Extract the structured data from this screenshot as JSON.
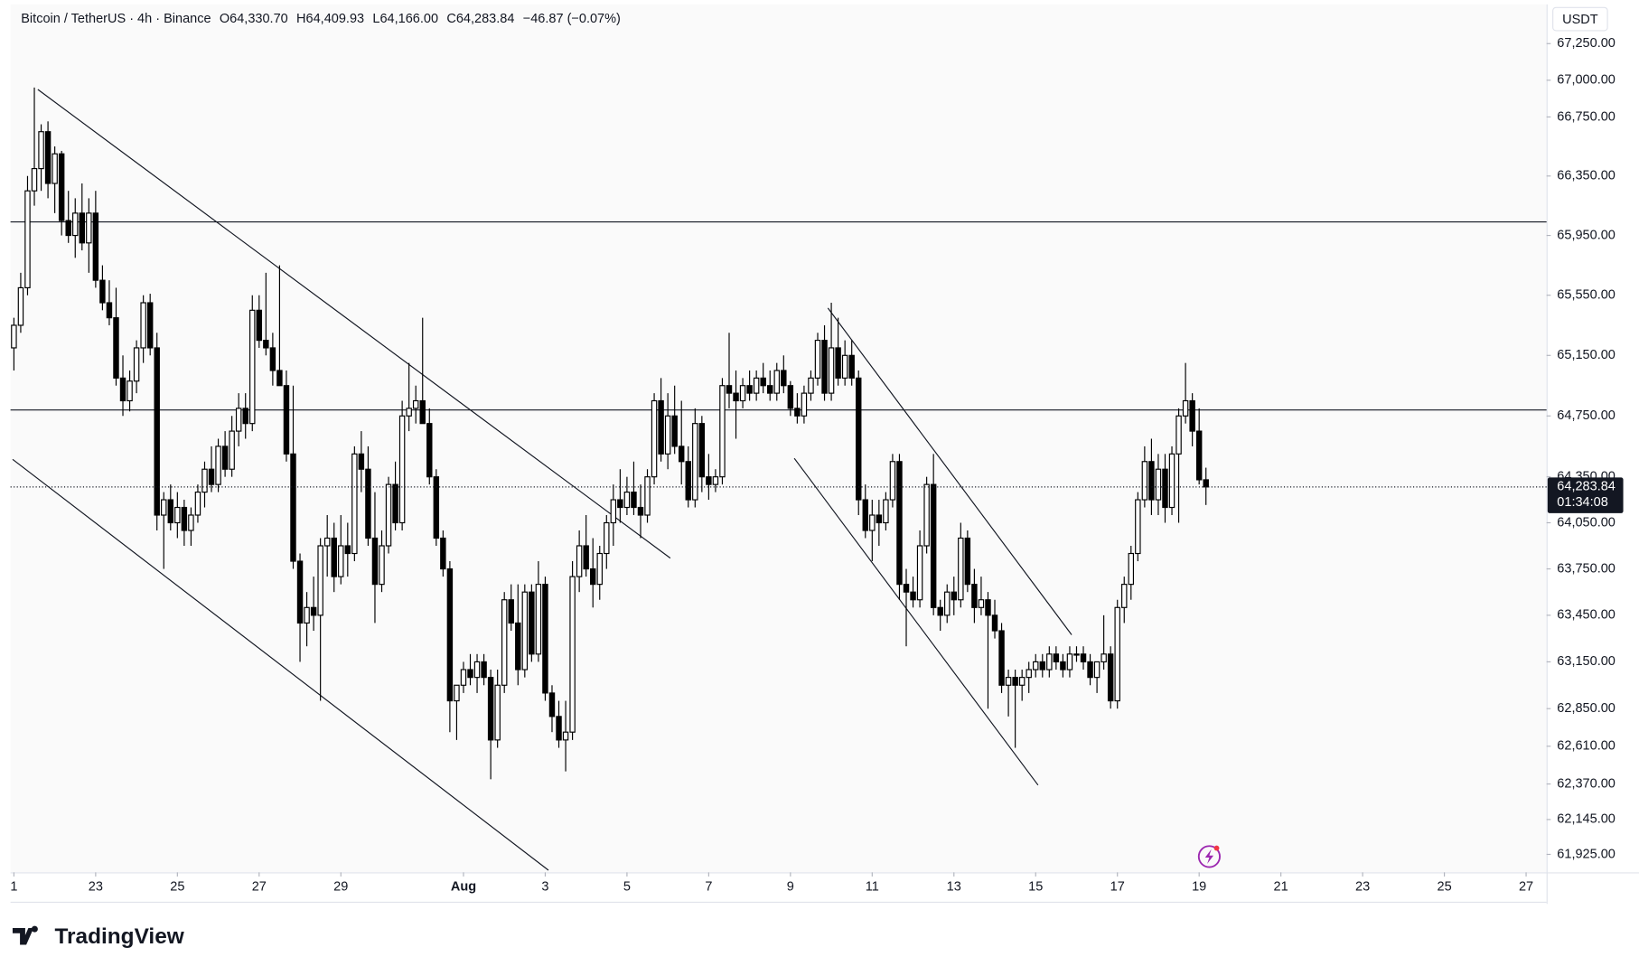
{
  "chart_data": {
    "type": "candlestick",
    "title": "Bitcoin / TetherUS · 4h · Binance",
    "ohlc_labels": [
      "O64,330.70",
      "H64,409.93",
      "L64,166.00",
      "C64,283.84",
      "−46.87 (−0.07%)"
    ],
    "currency": "USDT",
    "last_price_label": "64,283.84",
    "countdown": "01:34:08",
    "branding": "TradingView",
    "up_color": "#ffffff",
    "down_color": "#000000",
    "outline_color": "#000000",
    "ylog": true,
    "xlim": [
      -0.5,
      225
    ],
    "ylim": [
      61812,
      67519
    ],
    "xticks": [
      {
        "value": 0,
        "label": "1"
      },
      {
        "value": 12,
        "label": "23"
      },
      {
        "value": 24,
        "label": "25"
      },
      {
        "value": 36,
        "label": "27"
      },
      {
        "value": 48,
        "label": "29"
      },
      {
        "value": 66,
        "label": "Aug"
      },
      {
        "value": 78,
        "label": "3"
      },
      {
        "value": 90,
        "label": "5"
      },
      {
        "value": 102,
        "label": "7"
      },
      {
        "value": 114,
        "label": "9"
      },
      {
        "value": 126,
        "label": "11"
      },
      {
        "value": 138,
        "label": "13"
      },
      {
        "value": 150,
        "label": "15"
      },
      {
        "value": 162,
        "label": "17"
      },
      {
        "value": 174,
        "label": "19"
      },
      {
        "value": 186,
        "label": "21"
      },
      {
        "value": 198,
        "label": "23"
      },
      {
        "value": 210,
        "label": "25"
      },
      {
        "value": 222,
        "label": "27"
      }
    ],
    "yticks": [
      {
        "value": 67250,
        "label": "67,250.00"
      },
      {
        "value": 67000,
        "label": "67,000.00"
      },
      {
        "value": 66750,
        "label": "66,750.00"
      },
      {
        "value": 66350,
        "label": "66,350.00"
      },
      {
        "value": 65950,
        "label": "65,950.00"
      },
      {
        "value": 65550,
        "label": "65,550.00"
      },
      {
        "value": 65150,
        "label": "65,150.00"
      },
      {
        "value": 64750,
        "label": "64,750.00"
      },
      {
        "value": 64350,
        "label": "64,350.00"
      },
      {
        "value": 64050,
        "label": "64,050.00"
      },
      {
        "value": 63750,
        "label": "63,750.00"
      },
      {
        "value": 63450,
        "label": "63,450.00"
      },
      {
        "value": 63150,
        "label": "63,150.00"
      },
      {
        "value": 62850,
        "label": "62,850.00"
      },
      {
        "value": 62610,
        "label": "62,610.00"
      },
      {
        "value": 62370,
        "label": "62,370.00"
      },
      {
        "value": 62145,
        "label": "62,145.00"
      },
      {
        "value": 61925,
        "label": "61,925.00"
      }
    ],
    "open": [
      65200,
      65350,
      65600,
      66250,
      66400,
      66650,
      66300,
      66500,
      66050,
      65950,
      66100,
      65900,
      66100,
      65650,
      65500,
      65400,
      65000,
      64850,
      64980,
      65200,
      65500,
      65200,
      64100,
      64200,
      64050,
      64150,
      64000,
      64100,
      64250,
      64400,
      64300,
      64550,
      64400,
      64650,
      64800,
      64700,
      65450,
      65250,
      65200,
      65050,
      64950,
      64500,
      63800,
      63400,
      63500,
      63450,
      63900,
      63950,
      63700,
      63900,
      63850,
      64500,
      64400,
      63950,
      63650,
      63900,
      64300,
      64050,
      64750,
      64800,
      64850,
      64700,
      64350,
      63950,
      63750,
      62900,
      63000,
      63100,
      63050,
      63150,
      63050,
      62650,
      63000,
      63550,
      63400,
      63100,
      63600,
      63200,
      63650,
      62950,
      62800,
      62650,
      62700,
      63700,
      63900,
      63750,
      63650,
      63850,
      64050,
      64200,
      64150,
      64250,
      64150,
      64100,
      64350,
      64850,
      64500,
      64750,
      64550,
      64450,
      64200,
      64700,
      64350,
      64300,
      64350,
      64950,
      64900,
      64850,
      64950,
      64900,
      65000,
      64950,
      64900,
      65050,
      64950,
      64800,
      64750,
      64900,
      65000,
      65250,
      64900,
      65200,
      65000,
      65150,
      65000,
      64200,
      64000,
      64100,
      64050,
      64200,
      64450,
      63650,
      63600,
      63550,
      63900,
      64300,
      63500,
      63450,
      63600,
      63550,
      63950,
      63650,
      63500,
      63550,
      63450,
      63350,
      63000,
      63050,
      63000,
      63050,
      63100,
      63150,
      63100,
      63200,
      63150,
      63100,
      63200,
      63200,
      63150,
      63050,
      63150,
      63200,
      62900,
      63500,
      63650,
      63850,
      64200,
      64450,
      64200,
      64400,
      64150,
      64500,
      64750,
      64850,
      64650,
      64330.7
    ],
    "high": [
      65400,
      65700,
      66350,
      66950,
      66700,
      66720,
      66550,
      66520,
      66250,
      66200,
      66300,
      66200,
      66250,
      65750,
      65650,
      65600,
      65150,
      65050,
      65250,
      65550,
      65560,
      65300,
      64250,
      64300,
      64250,
      64200,
      64150,
      64300,
      64450,
      64550,
      64600,
      64650,
      64750,
      64900,
      64900,
      65550,
      65550,
      65700,
      65300,
      65750,
      65050,
      64950,
      63850,
      63600,
      63700,
      63950,
      64100,
      64050,
      64100,
      64050,
      64550,
      64650,
      64550,
      64250,
      64000,
      64350,
      64450,
      64850,
      65100,
      64950,
      65400,
      64800,
      64400,
      64000,
      63800,
      63000,
      63150,
      63200,
      63200,
      63200,
      63100,
      63100,
      63600,
      63650,
      63650,
      63650,
      63650,
      63800,
      63700,
      63000,
      62900,
      62900,
      63800,
      64000,
      64100,
      63950,
      63900,
      64100,
      64300,
      64400,
      64350,
      64450,
      64300,
      64400,
      64900,
      65000,
      64900,
      64950,
      64850,
      64550,
      64800,
      64750,
      64500,
      64400,
      65000,
      65300,
      65050,
      65000,
      65050,
      65050,
      65100,
      65050,
      65100,
      65150,
      64980,
      64900,
      64950,
      65050,
      65300,
      65350,
      65500,
      65400,
      65250,
      65250,
      65050,
      64300,
      64200,
      64200,
      64250,
      64500,
      64500,
      63750,
      63700,
      64000,
      64350,
      64500,
      63550,
      63650,
      63700,
      64050,
      64000,
      63750,
      63700,
      63600,
      63550,
      63400,
      63100,
      63100,
      63100,
      63150,
      63200,
      63200,
      63250,
      63250,
      63200,
      63250,
      63250,
      63250,
      63200,
      63150,
      63450,
      63250,
      63550,
      63700,
      63900,
      64250,
      64550,
      64600,
      64500,
      64500,
      64550,
      64800,
      65100,
      64900,
      64800,
      64409.93
    ],
    "low": [
      65050,
      65300,
      65550,
      66150,
      66250,
      66200,
      66100,
      65950,
      65900,
      65800,
      65850,
      65700,
      65600,
      65450,
      65350,
      64950,
      64750,
      64780,
      64900,
      65100,
      65150,
      64000,
      63750,
      64000,
      63950,
      63900,
      63900,
      64050,
      64150,
      64250,
      64250,
      64350,
      64350,
      64550,
      64600,
      64650,
      65200,
      65150,
      64950,
      64950,
      64450,
      63750,
      63150,
      63250,
      63350,
      62900,
      63700,
      63600,
      63650,
      63700,
      63800,
      64250,
      63900,
      63400,
      63600,
      63850,
      64000,
      64000,
      64650,
      64700,
      64700,
      64300,
      63900,
      63700,
      62700,
      62650,
      62950,
      63000,
      62950,
      63000,
      62400,
      62600,
      62950,
      63350,
      63000,
      63050,
      63150,
      63150,
      62900,
      62700,
      62600,
      62450,
      62650,
      63600,
      63700,
      63500,
      63550,
      63750,
      63900,
      64050,
      64100,
      64100,
      63950,
      64050,
      64300,
      64450,
      64400,
      64500,
      64300,
      64150,
      64150,
      64250,
      64200,
      64250,
      64300,
      64800,
      64600,
      64800,
      64850,
      64850,
      64900,
      64850,
      64850,
      64900,
      64750,
      64700,
      64700,
      64850,
      64950,
      64850,
      64850,
      64950,
      64950,
      64950,
      64100,
      63950,
      63800,
      63900,
      64000,
      64150,
      63550,
      63250,
      63500,
      63500,
      63850,
      63450,
      63350,
      63400,
      63450,
      63500,
      63600,
      63400,
      63450,
      62850,
      63300,
      62950,
      62800,
      62600,
      62900,
      62950,
      63050,
      63050,
      63050,
      63100,
      63050,
      63050,
      63150,
      63100,
      63000,
      62950,
      63100,
      62850,
      62850,
      63400,
      63550,
      63800,
      64150,
      64100,
      64100,
      64050,
      64100,
      64050,
      64700,
      64550,
      64300,
      64166
    ],
    "close": [
      65350,
      65600,
      66250,
      66400,
      66650,
      66300,
      66500,
      66050,
      65950,
      66100,
      65900,
      66100,
      65650,
      65500,
      65400,
      65000,
      64850,
      64980,
      65200,
      65500,
      65200,
      64100,
      64200,
      64050,
      64150,
      64000,
      64100,
      64250,
      64400,
      64300,
      64550,
      64400,
      64650,
      64800,
      64700,
      65450,
      65250,
      65200,
      65050,
      64950,
      64500,
      63800,
      63400,
      63500,
      63450,
      63900,
      63950,
      63700,
      63900,
      63850,
      64500,
      64400,
      63950,
      63650,
      63900,
      64300,
      64050,
      64750,
      64800,
      64850,
      64700,
      64350,
      63950,
      63750,
      62900,
      63000,
      63100,
      63050,
      63150,
      63050,
      62650,
      63000,
      63550,
      63400,
      63100,
      63600,
      63200,
      63650,
      62950,
      62800,
      62650,
      62700,
      63700,
      63900,
      63750,
      63650,
      63850,
      64050,
      64200,
      64150,
      64250,
      64150,
      64100,
      64350,
      64850,
      64500,
      64750,
      64550,
      64450,
      64200,
      64700,
      64350,
      64300,
      64350,
      64950,
      64900,
      64850,
      64950,
      64900,
      65000,
      64950,
      64900,
      65050,
      64950,
      64800,
      64750,
      64900,
      65000,
      65250,
      64900,
      65200,
      65000,
      65150,
      65000,
      64200,
      64000,
      64100,
      64050,
      64200,
      64450,
      63650,
      63600,
      63550,
      63900,
      64300,
      63500,
      63450,
      63600,
      63550,
      63950,
      63650,
      63500,
      63550,
      63450,
      63350,
      63000,
      63050,
      63000,
      63050,
      63100,
      63150,
      63100,
      63200,
      63150,
      63100,
      63200,
      63200,
      63150,
      63050,
      63150,
      63200,
      62900,
      63500,
      63650,
      63850,
      64200,
      64450,
      64200,
      64400,
      64150,
      64500,
      64750,
      64850,
      64650,
      64330.7,
      64283.84
    ]
  }
}
